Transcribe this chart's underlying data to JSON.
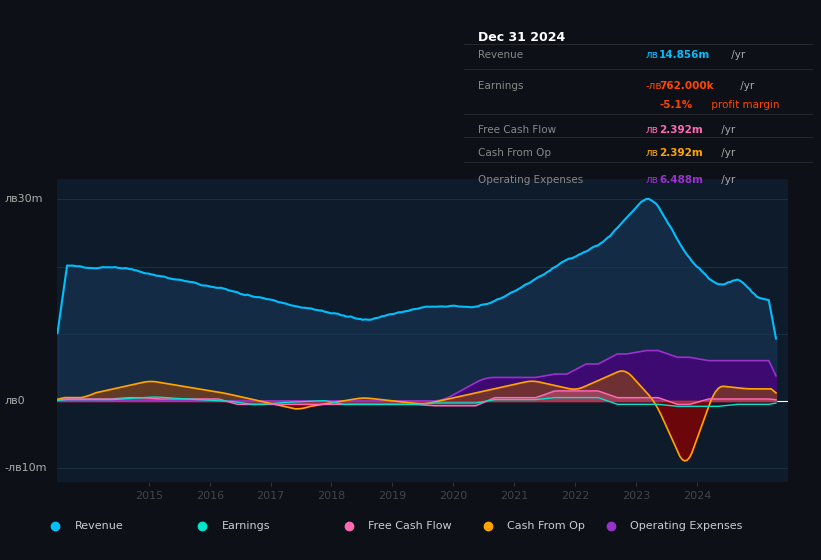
{
  "bg_color": "#0d1117",
  "plot_bg_color": "#0d1b2a",
  "grid_color": "#1e3a4a",
  "zero_line_color": "#ffffff",
  "title_box_color": "#000000",
  "title_text": "Dec 31 2024",
  "title_color": "#ffffff",
  "label_color": "#888888",
  "ylim": [
    -12000000,
    33000000
  ],
  "xticks": [
    2015,
    2016,
    2017,
    2018,
    2019,
    2020,
    2021,
    2022,
    2023,
    2024
  ],
  "xlim_start": 2013.5,
  "xlim_end": 2025.5,
  "legend_items": [
    {
      "label": "Revenue",
      "color": "#00bfff"
    },
    {
      "label": "Earnings",
      "color": "#00e5cc"
    },
    {
      "label": "Free Cash Flow",
      "color": "#ff69b4"
    },
    {
      "label": "Cash From Op",
      "color": "#ffa500"
    },
    {
      "label": "Operating Expenses",
      "color": "#9932cc"
    }
  ],
  "revenue_color": "#00bfff",
  "revenue_fill_color": "#1a3a5c",
  "earnings_color": "#00e5cc",
  "fcf_color": "#ff69b4",
  "cashfromop_color": "#ffa500",
  "opex_color": "#9932cc",
  "opex_fill_color": "#4b0082",
  "cashop_pos_fill": "#8B4513",
  "cashop_neg_fill": "#8B0000"
}
